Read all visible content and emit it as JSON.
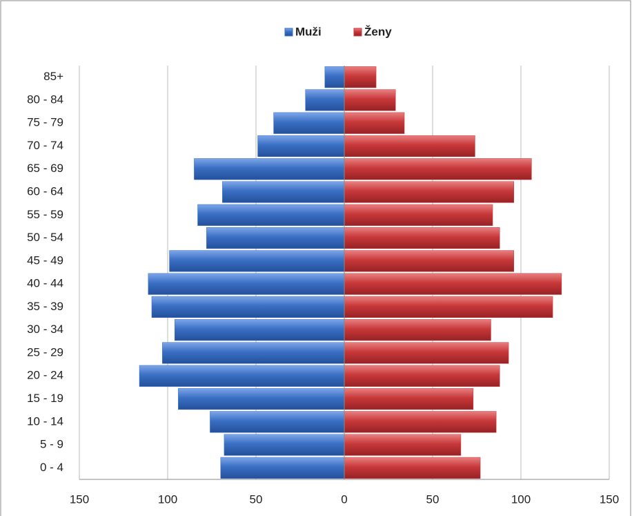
{
  "chart_data": {
    "type": "bar",
    "orientation": "horizontal",
    "categories": [
      "0 - 4",
      "5 - 9",
      "10 - 14",
      "15 - 19",
      "20 - 24",
      "25 - 29",
      "30 - 34",
      "35 - 39",
      "40 - 44",
      "45 - 49",
      "50 - 54",
      "55 - 59",
      "60 - 64",
      "65 - 69",
      "70 - 74",
      "75 - 79",
      "80 - 84",
      "85+"
    ],
    "series": [
      {
        "name": "Muži",
        "color": "#3a6fc4",
        "values": [
          -70,
          -68,
          -76,
          -94,
          -116,
          -103,
          -96,
          -109,
          -111,
          -99,
          -78,
          -83,
          -69,
          -85,
          -49,
          -40,
          -22,
          -11
        ]
      },
      {
        "name": "Ženy",
        "color": "#c8383a",
        "values": [
          77,
          66,
          86,
          73,
          88,
          93,
          83,
          118,
          123,
          96,
          88,
          84,
          96,
          106,
          74,
          34,
          29,
          18
        ]
      }
    ],
    "xlim": [
      -150,
      150
    ],
    "xticks": [
      {
        "value": -150,
        "label": "150"
      },
      {
        "value": -100,
        "label": "100"
      },
      {
        "value": -50,
        "label": "50"
      },
      0,
      50,
      100,
      150
    ],
    "grid": true,
    "legend": "top"
  }
}
